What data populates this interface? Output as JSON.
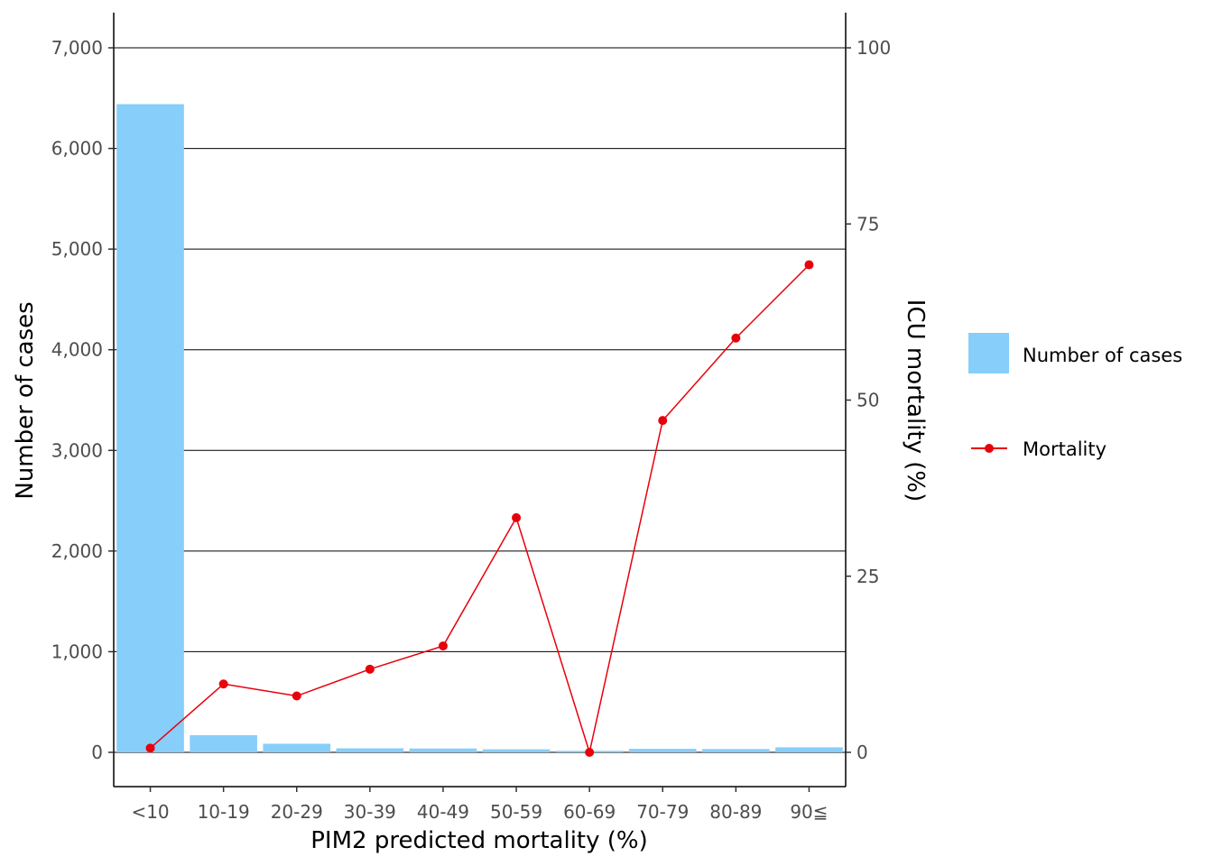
{
  "chart_data": {
    "type": "bar+line",
    "xlabel": "PIM2 predicted mortality (%)",
    "ylabel_left": "Number of cases",
    "ylabel_right": "ICU mortality (%)",
    "categories": [
      "<10",
      "10-19",
      "20-29",
      "30-39",
      "40-49",
      "50-59",
      "60-69",
      "70-79",
      "80-89",
      "90≦"
    ],
    "ylim_left": [
      0,
      7000
    ],
    "ylim_right": [
      0,
      100
    ],
    "yticks_left": [
      0,
      1000,
      2000,
      3000,
      4000,
      5000,
      6000,
      7000
    ],
    "yticks_left_labels": [
      "0",
      "1,000",
      "2,000",
      "3,000",
      "4,000",
      "5,000",
      "6,000",
      "7,000"
    ],
    "yticks_right": [
      0,
      25,
      50,
      75,
      100
    ],
    "yticks_right_labels": [
      "0",
      "25",
      "50",
      "75",
      "100"
    ],
    "grid": "horizontal",
    "legend_position": "right",
    "series": [
      {
        "name": "Number of cases",
        "kind": "bar",
        "axis": "left",
        "color": "#87CEFA",
        "values": [
          6440,
          170,
          85,
          40,
          38,
          30,
          15,
          35,
          33,
          50
        ]
      },
      {
        "name": "Mortality",
        "kind": "line",
        "axis": "right",
        "color": "#E8000B",
        "values": [
          0.6,
          9.7,
          8.0,
          11.8,
          15.1,
          33.3,
          0.0,
          47.1,
          58.8,
          69.2
        ]
      }
    ]
  }
}
